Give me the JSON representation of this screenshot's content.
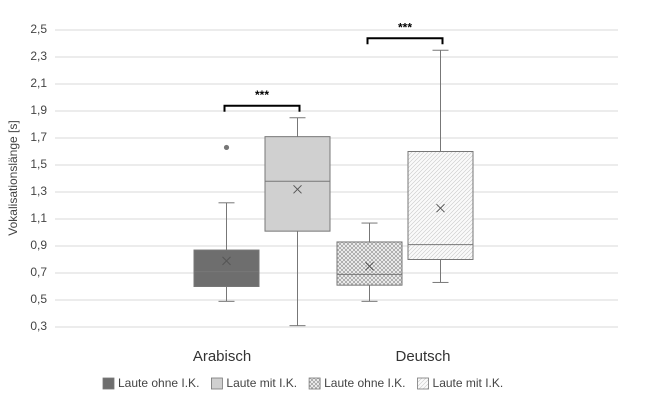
{
  "chart_data": {
    "type": "box",
    "y_label": "Vokalisationslänge [s]",
    "categories": [
      "Arabisch",
      "Deutsch"
    ],
    "ylim": [
      0.3,
      2.5
    ],
    "yticks": [
      {
        "value": 0.3,
        "label": "0,3"
      },
      {
        "value": 0.5,
        "label": "0,5"
      },
      {
        "value": 0.7,
        "label": "0,7"
      },
      {
        "value": 0.9,
        "label": "0,9"
      },
      {
        "value": 1.1,
        "label": "1,1"
      },
      {
        "value": 1.3,
        "label": "1,3"
      },
      {
        "value": 1.5,
        "label": "1,5"
      },
      {
        "value": 1.7,
        "label": "1,7"
      },
      {
        "value": 1.9,
        "label": "1,9"
      },
      {
        "value": 2.1,
        "label": "2,1"
      },
      {
        "value": 2.3,
        "label": "2,3"
      },
      {
        "value": 2.5,
        "label": "2,5"
      }
    ],
    "grid": true,
    "legend": "bottom",
    "series": [
      {
        "name": "Laute ohne I.K.",
        "color": "#6e6e6e",
        "fill_style": "solid",
        "values": [
          {
            "min": 0.49,
            "q1": 0.6,
            "median": 0.71,
            "q3": 0.87,
            "max": 1.22,
            "mean": 0.79,
            "outliers": [
              1.63
            ]
          },
          null
        ]
      },
      {
        "name": "Laute mit I.K.",
        "color": "#d0d0d0",
        "fill_style": "solid",
        "values": [
          {
            "min": 0.31,
            "q1": 1.01,
            "median": 1.38,
            "q3": 1.71,
            "max": 1.85,
            "mean": 1.32,
            "outliers": []
          },
          null
        ]
      },
      {
        "name": "Laute ohne I.K.",
        "color": "#8a8a8a",
        "fill_style": "crosshatch",
        "values": [
          null,
          {
            "min": 0.49,
            "q1": 0.61,
            "median": 0.69,
            "q3": 0.93,
            "max": 1.07,
            "mean": 0.75,
            "outliers": []
          }
        ]
      },
      {
        "name": "Laute mit I.K.",
        "color": "#c8c8c8",
        "fill_style": "diagonal",
        "values": [
          null,
          {
            "min": 0.63,
            "q1": 0.8,
            "median": 0.91,
            "q3": 1.6,
            "max": 2.35,
            "mean": 1.18,
            "outliers": []
          }
        ]
      }
    ],
    "annotations": [
      {
        "text": "***",
        "category": 0
      },
      {
        "text": "***",
        "category": 1
      }
    ]
  }
}
